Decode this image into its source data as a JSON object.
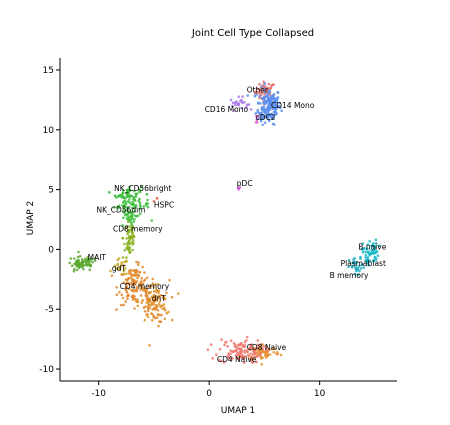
{
  "chart_data": {
    "type": "scatter",
    "title": "Joint Cell Type Collapsed",
    "xlabel": "UMAP 1",
    "ylabel": "UMAP 2",
    "xlim": [
      -13.5,
      17
    ],
    "ylim": [
      -11,
      16
    ],
    "xticks": [
      -10,
      0,
      10
    ],
    "yticks": [
      -10,
      -5,
      0,
      5,
      10,
      15
    ],
    "clusters": [
      {
        "label": "Other",
        "color": "#e8706a",
        "cx": 5.1,
        "cy": 13.2,
        "sx": 0.45,
        "sy": 0.4,
        "n": 45
      },
      {
        "label": "CD14 Mono",
        "color": "#5b8ff0",
        "cx": 5.4,
        "cy": 12.0,
        "sx": 0.55,
        "sy": 0.75,
        "n": 140
      },
      {
        "label": "CD16 Mono",
        "color": "#a878e8",
        "cx": 2.7,
        "cy": 12.2,
        "sx": 0.4,
        "sy": 0.25,
        "n": 25
      },
      {
        "label": "cDC2",
        "color": "#e060c8",
        "cx": 4.3,
        "cy": 10.9,
        "sx": 0.15,
        "sy": 0.3,
        "n": 6
      },
      {
        "label": "pDC",
        "color": "#d050d0",
        "cx": 2.6,
        "cy": 5.1,
        "sx": 0.08,
        "sy": 0.08,
        "n": 3
      },
      {
        "label": "NK_CD56bright",
        "color": "#2db52d",
        "cx": -7.3,
        "cy": 4.7,
        "sx": 0.6,
        "sy": 0.3,
        "n": 30
      },
      {
        "label": "NK_CD56dim",
        "color": "#3cbf3c",
        "cx": -7.0,
        "cy": 3.7,
        "sx": 0.8,
        "sy": 0.5,
        "n": 70
      },
      {
        "label": "HSPC",
        "color": "#e07050",
        "cx": -4.8,
        "cy": 4.2,
        "sx": 0.15,
        "sy": 0.1,
        "n": 3
      },
      {
        "label": "CD8 memory",
        "color": "#8ab020",
        "cx": -7.2,
        "cy": 1.0,
        "sx": 0.3,
        "sy": 0.9,
        "n": 45
      },
      {
        "label": "MAIT",
        "color": "#5aa830",
        "cx": -11.5,
        "cy": -1.2,
        "sx": 0.75,
        "sy": 0.3,
        "n": 45
      },
      {
        "label": "gdT",
        "color": "#c8a820",
        "cx": -8.0,
        "cy": -1.5,
        "sx": 0.35,
        "sy": 0.35,
        "n": 20
      },
      {
        "label": "CD4 memory",
        "color": "#e08a30",
        "cx": -6.8,
        "cy": -3.0,
        "sx": 0.7,
        "sy": 0.8,
        "n": 90
      },
      {
        "label": "dnT",
        "color": "#e0902a",
        "cx": -5.0,
        "cy": -4.4,
        "sx": 0.7,
        "sy": 0.9,
        "n": 90
      },
      {
        "label": "CD8 Naive",
        "color": "#e89038",
        "cx": 4.9,
        "cy": -8.6,
        "sx": 0.75,
        "sy": 0.35,
        "n": 70
      },
      {
        "label": "CD4 Naive",
        "color": "#f07870",
        "cx": 2.8,
        "cy": -8.5,
        "sx": 1.0,
        "sy": 0.5,
        "n": 110
      },
      {
        "label": "B naive",
        "color": "#18b8c8",
        "cx": 14.6,
        "cy": -0.2,
        "sx": 0.35,
        "sy": 0.5,
        "n": 55
      },
      {
        "label": "Plasmablast",
        "color": "#10a8b8",
        "cx": 14.3,
        "cy": -1.0,
        "sx": 0.15,
        "sy": 0.15,
        "n": 6
      },
      {
        "label": "B memory",
        "color": "#20b0c0",
        "cx": 13.4,
        "cy": -1.5,
        "sx": 0.35,
        "sy": 0.4,
        "n": 30
      }
    ],
    "labels": [
      {
        "text": "Other",
        "x": 3.4,
        "y": 13.1
      },
      {
        "text": "CD14 Mono",
        "x": 5.6,
        "y": 11.8
      },
      {
        "text": "CD16 Mono",
        "x": -0.4,
        "y": 11.5
      },
      {
        "text": "cDC2",
        "x": 4.2,
        "y": 10.8
      },
      {
        "text": "pDC",
        "x": 2.5,
        "y": 5.3
      },
      {
        "text": "NK_CD56bright",
        "x": -8.6,
        "y": 4.9
      },
      {
        "text": "HSPC",
        "x": -5.0,
        "y": 3.5
      },
      {
        "text": "NK_CD56dim",
        "x": -10.2,
        "y": 3.1
      },
      {
        "text": "CD8 memory",
        "x": -8.7,
        "y": 1.5
      },
      {
        "text": "MAIT",
        "x": -11.0,
        "y": -0.9
      },
      {
        "text": "gdT",
        "x": -8.8,
        "y": -1.8
      },
      {
        "text": "CD4 memory",
        "x": -8.1,
        "y": -3.3
      },
      {
        "text": "dnT",
        "x": -5.2,
        "y": -4.3
      },
      {
        "text": "CD8 Naive",
        "x": 3.4,
        "y": -8.4
      },
      {
        "text": "CD4 Naive",
        "x": 0.7,
        "y": -9.4
      },
      {
        "text": "B naive",
        "x": 13.5,
        "y": 0.0
      },
      {
        "text": "Plasmablast",
        "x": 11.9,
        "y": -1.4
      },
      {
        "text": "B memory",
        "x": 10.9,
        "y": -2.4
      }
    ]
  }
}
